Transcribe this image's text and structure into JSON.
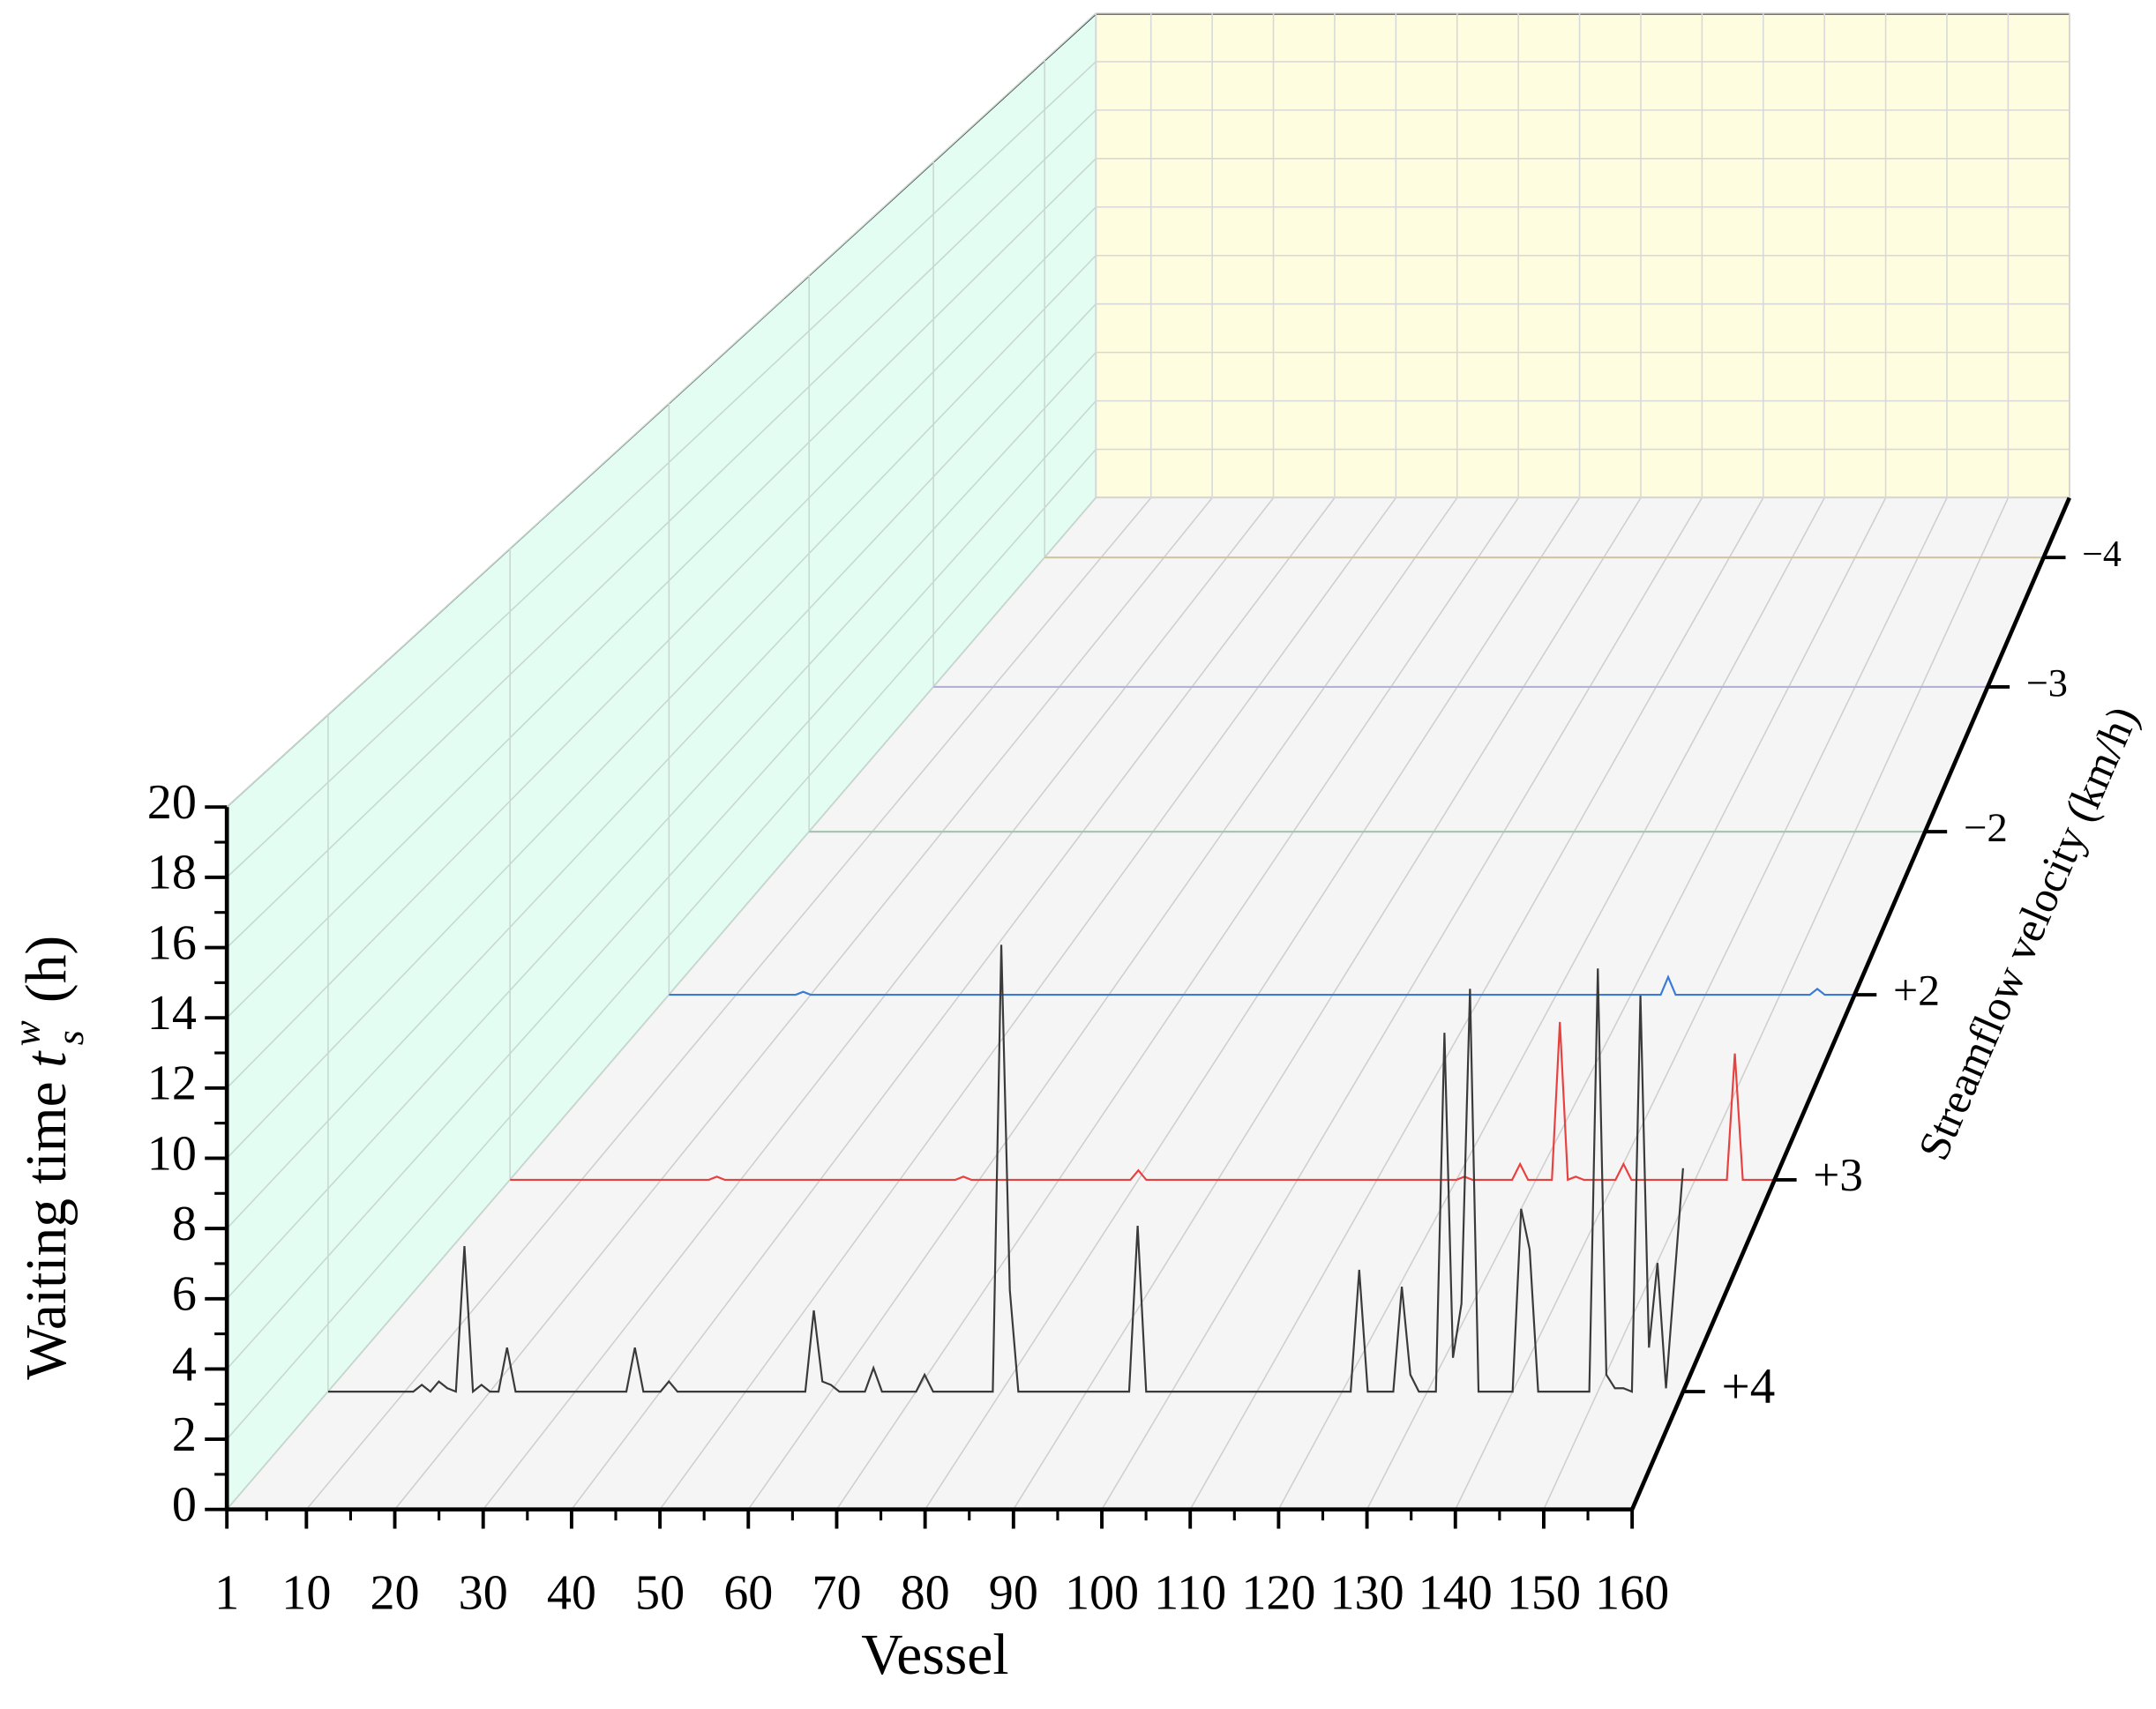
{
  "chart_data": {
    "type": "waterfall",
    "xlabel": "Vessel",
    "ylabel": {
      "text": "Waiting time",
      "symbol": "t",
      "sub": "s",
      "sup": "w",
      "unit": "(h)"
    },
    "zlabel": "Streamflow velocity (km/h)",
    "xlim": [
      1,
      160
    ],
    "xticks": [
      1,
      10,
      20,
      30,
      40,
      50,
      60,
      70,
      80,
      90,
      100,
      110,
      120,
      130,
      140,
      150,
      160
    ],
    "ylim": [
      0,
      20
    ],
    "yticks": [
      0,
      2,
      4,
      6,
      8,
      10,
      12,
      14,
      16,
      18,
      20
    ],
    "grid": true,
    "series": [
      {
        "name": "+4",
        "color": "#3a3a3a",
        "x": [
          1,
          11,
          12,
          13,
          14,
          15,
          16,
          17,
          18,
          19,
          20,
          21,
          22,
          23,
          36,
          37,
          38,
          40,
          41,
          42,
          57,
          58,
          59,
          60,
          61,
          64,
          65,
          66,
          70,
          71,
          72,
          79,
          80,
          81,
          82,
          95,
          96,
          97,
          121,
          122,
          123,
          126,
          127,
          128,
          129,
          131,
          132,
          133,
          134,
          135,
          136,
          140,
          141,
          142,
          143,
          149,
          150,
          151,
          152,
          153,
          154,
          155,
          156,
          157,
          158,
          160
        ],
        "values": [
          0,
          0,
          0.2,
          0,
          0.3,
          0.1,
          0,
          4.3,
          0,
          0.2,
          0,
          0,
          1.3,
          0,
          0,
          1.3,
          0,
          0,
          0.3,
          0,
          0,
          2.4,
          0.3,
          0.2,
          0,
          0,
          0.7,
          0,
          0,
          0.5,
          0,
          0,
          13.2,
          3.0,
          0,
          0,
          4.9,
          0,
          0,
          3.6,
          0,
          0,
          3.1,
          0.5,
          0,
          0,
          10.6,
          1.0,
          2.6,
          11.9,
          0,
          0,
          5.4,
          4.2,
          0,
          0,
          12.5,
          0.5,
          0.1,
          0.1,
          0,
          11.7,
          1.3,
          3.8,
          0.1,
          6.6
        ]
      },
      {
        "name": "+3",
        "color": "#e8413f",
        "x": [
          1,
          26,
          27,
          28,
          57,
          58,
          59,
          79,
          80,
          81,
          120,
          121,
          122,
          127,
          128,
          129,
          132,
          133,
          134,
          135,
          136,
          140,
          141,
          142,
          154,
          155,
          156,
          160
        ],
        "values": [
          0,
          0,
          0.1,
          0,
          0,
          0.1,
          0,
          0,
          0.3,
          0,
          0,
          0.1,
          0,
          0,
          0.5,
          0,
          0,
          5.0,
          0,
          0.1,
          0,
          0,
          0.5,
          0,
          0,
          4.0,
          0,
          0
        ]
      },
      {
        "name": "+2",
        "color": "#3a7bd5",
        "x": [
          1,
          18,
          19,
          20,
          134,
          135,
          136,
          154,
          155,
          156,
          160
        ],
        "values": [
          0,
          0,
          0.1,
          0,
          0,
          0.6,
          0,
          0,
          0.2,
          0,
          0
        ]
      },
      {
        "name": "−2",
        "color": "#a9c4b4",
        "x": [
          1,
          160
        ],
        "values": [
          0,
          0
        ]
      },
      {
        "name": "−3",
        "color": "#b2b2d8",
        "x": [
          1,
          160
        ],
        "values": [
          0,
          0
        ]
      },
      {
        "name": "−4",
        "color": "#cfc59c",
        "x": [
          1,
          160
        ],
        "values": [
          0,
          0
        ]
      }
    ]
  }
}
